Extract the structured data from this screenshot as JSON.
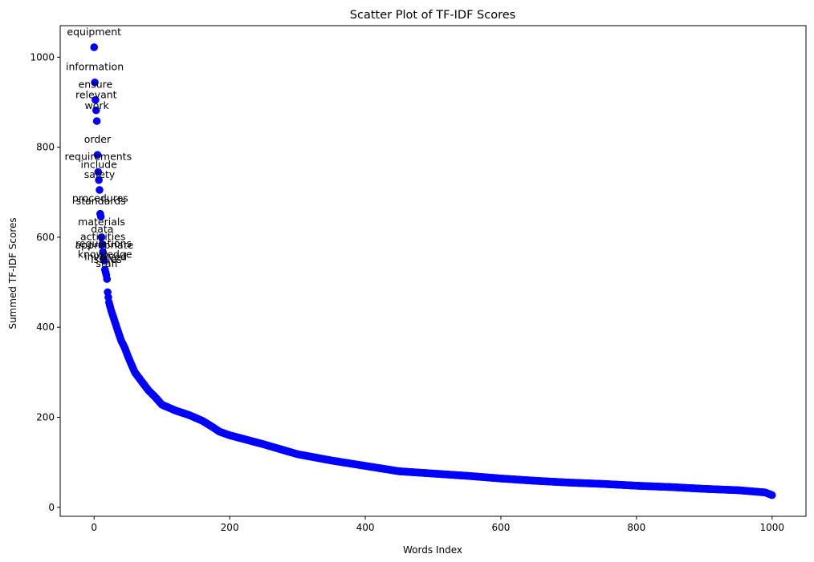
{
  "chart_data": {
    "type": "scatter",
    "title": "Scatter Plot of TF-IDF Scores",
    "xlabel": "Words Index",
    "ylabel": "Summed TF-IDF Scores",
    "xlim": [
      -50,
      1050
    ],
    "ylim": [
      -20,
      1070
    ],
    "xticks": [
      0,
      200,
      400,
      600,
      800,
      1000
    ],
    "yticks": [
      0,
      200,
      400,
      600,
      800,
      1000
    ],
    "grid": false,
    "marker_color": "#0000ff",
    "n_points": 1000,
    "curve_anchors": [
      [
        0,
        1022
      ],
      [
        1,
        944
      ],
      [
        2,
        905
      ],
      [
        3,
        882
      ],
      [
        4,
        858
      ],
      [
        5,
        783
      ],
      [
        6,
        745
      ],
      [
        7,
        727
      ],
      [
        8,
        705
      ],
      [
        9,
        652
      ],
      [
        10,
        646
      ],
      [
        11,
        600
      ],
      [
        12,
        584
      ],
      [
        13,
        567
      ],
      [
        14,
        552
      ],
      [
        15,
        548
      ],
      [
        16,
        528
      ],
      [
        17,
        522
      ],
      [
        18,
        516
      ],
      [
        19,
        507
      ],
      [
        20,
        478
      ],
      [
        22,
        455
      ],
      [
        25,
        438
      ],
      [
        30,
        415
      ],
      [
        35,
        392
      ],
      [
        40,
        370
      ],
      [
        45,
        355
      ],
      [
        50,
        335
      ],
      [
        60,
        300
      ],
      [
        70,
        280
      ],
      [
        80,
        260
      ],
      [
        90,
        245
      ],
      [
        100,
        228
      ],
      [
        120,
        215
      ],
      [
        140,
        205
      ],
      [
        160,
        192
      ],
      [
        175,
        178
      ],
      [
        185,
        168
      ],
      [
        200,
        160
      ],
      [
        250,
        140
      ],
      [
        300,
        118
      ],
      [
        350,
        104
      ],
      [
        400,
        92
      ],
      [
        450,
        80
      ],
      [
        500,
        75
      ],
      [
        550,
        70
      ],
      [
        600,
        64
      ],
      [
        650,
        59
      ],
      [
        700,
        55
      ],
      [
        750,
        52
      ],
      [
        800,
        48
      ],
      [
        850,
        45
      ],
      [
        900,
        41
      ],
      [
        950,
        38
      ],
      [
        990,
        33
      ],
      [
        1000,
        27
      ]
    ],
    "annotations": [
      {
        "label": "equipment",
        "index": 0
      },
      {
        "label": "information",
        "index": 1
      },
      {
        "label": "ensure",
        "index": 2
      },
      {
        "label": "relevant",
        "index": 3
      },
      {
        "label": "work",
        "index": 4
      },
      {
        "label": "order",
        "index": 5
      },
      {
        "label": "requirements",
        "index": 6
      },
      {
        "label": "include",
        "index": 7
      },
      {
        "label": "safety",
        "index": 8
      },
      {
        "label": "procedures",
        "index": 9
      },
      {
        "label": "standards",
        "index": 10
      },
      {
        "label": "materials",
        "index": 11
      },
      {
        "label": "data",
        "index": 12
      },
      {
        "label": "activities",
        "index": 13
      },
      {
        "label": "regulations",
        "index": 14
      },
      {
        "label": "appropriate",
        "index": 15
      },
      {
        "label": "knowledge",
        "index": 16
      },
      {
        "label": "involved",
        "index": 17
      },
      {
        "label": "issues",
        "index": 18
      },
      {
        "label": "staff",
        "index": 19
      }
    ]
  }
}
